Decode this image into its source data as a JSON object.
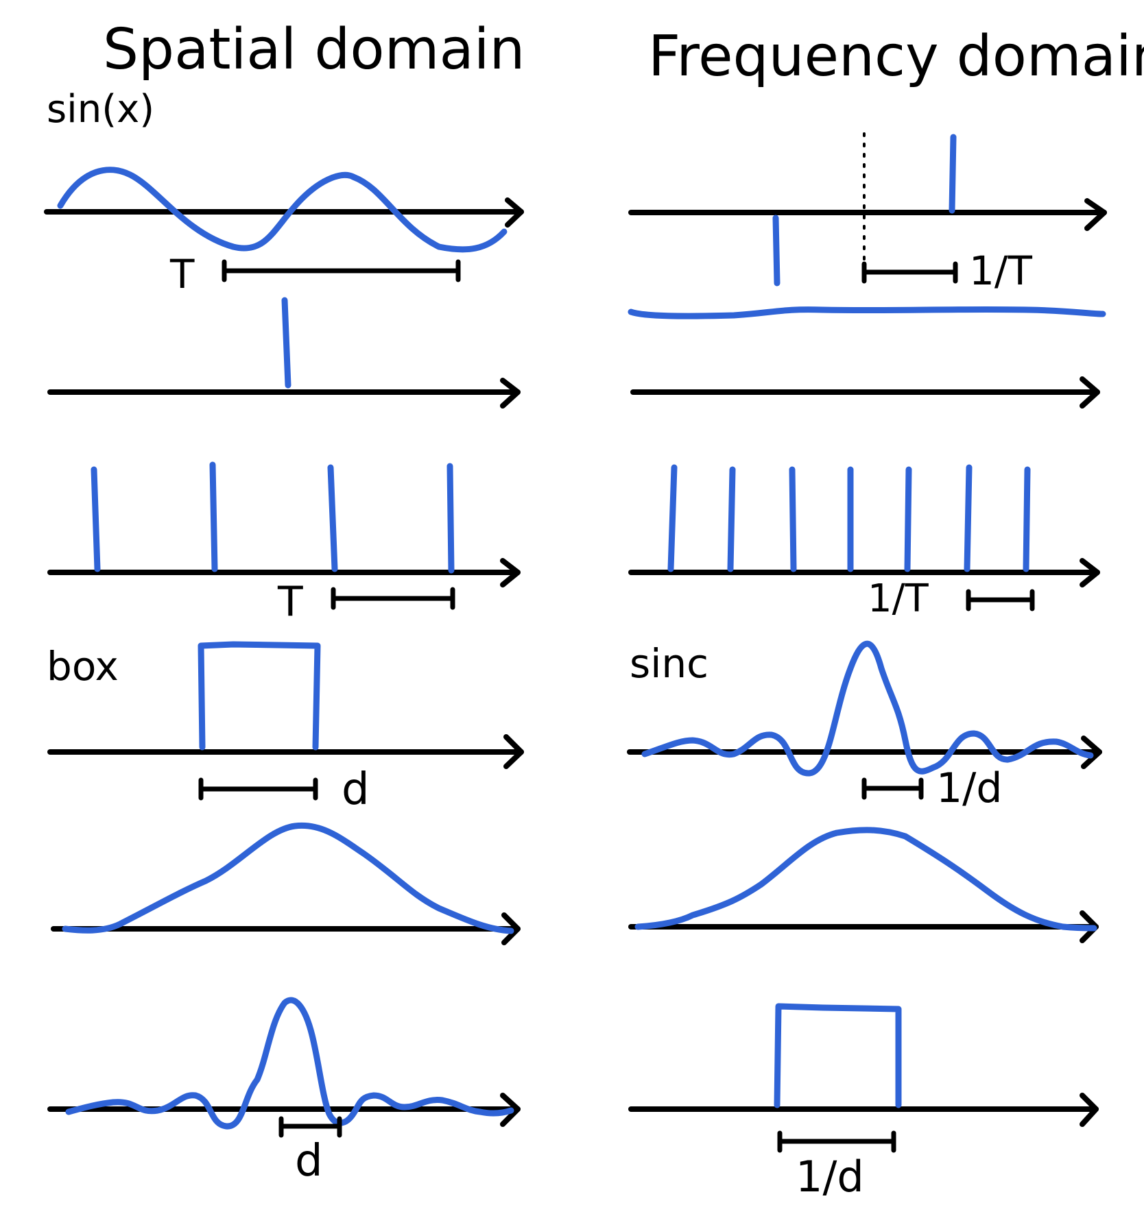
{
  "headers": {
    "spatial": "Spatial domain",
    "frequency": "Frequency domain"
  },
  "labels": {
    "sin": "sin(x)",
    "box": "box",
    "sinc": "sinc",
    "period_T1": "T",
    "inv_T1": "1/T",
    "period_T2": "T",
    "inv_T2": "1/T",
    "width_d1": "d",
    "inv_d1": "1/d",
    "width_d2": "d",
    "inv_d2": "1/d"
  },
  "colors": {
    "signal": "#2f63d6",
    "ink": "#000000",
    "background": "#ffffff"
  }
}
